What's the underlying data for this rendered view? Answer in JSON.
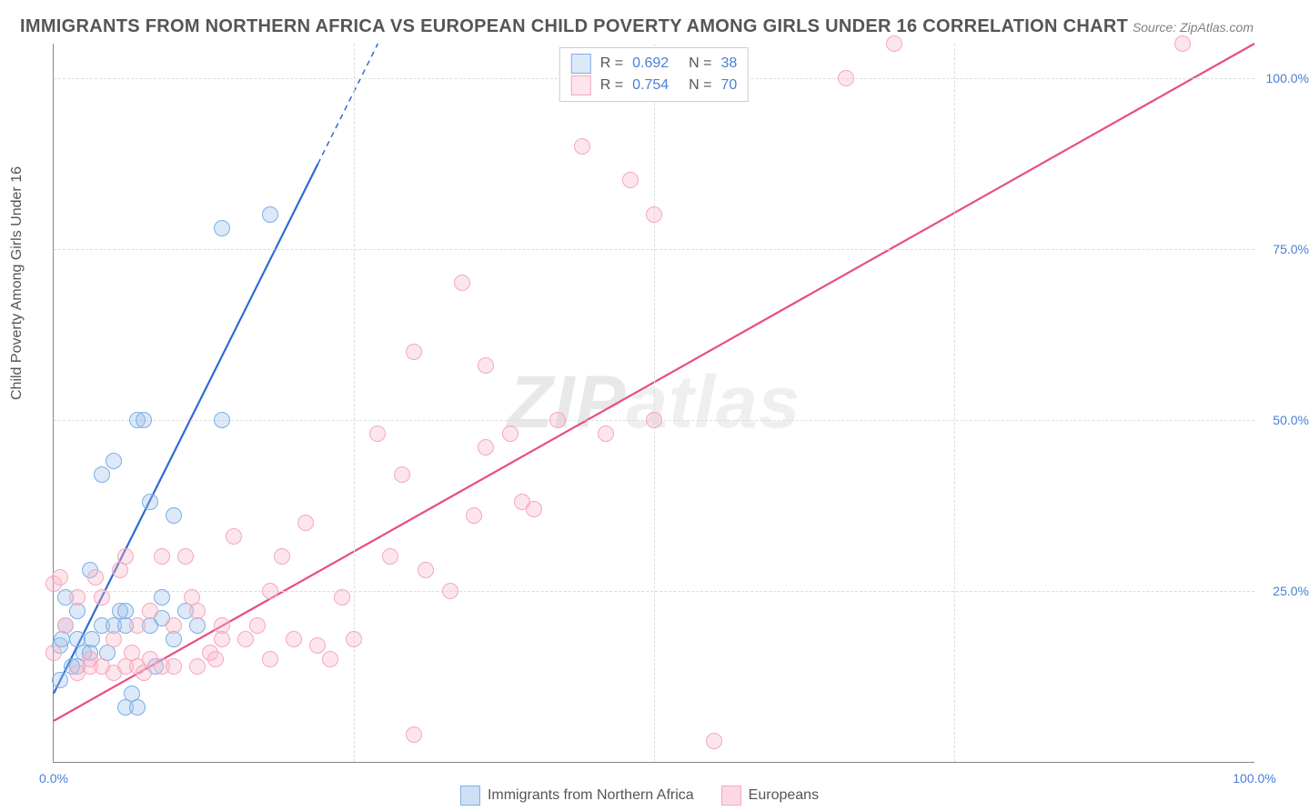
{
  "title": "IMMIGRANTS FROM NORTHERN AFRICA VS EUROPEAN CHILD POVERTY AMONG GIRLS UNDER 16 CORRELATION CHART",
  "source": "Source: ZipAtlas.com",
  "ylabel": "Child Poverty Among Girls Under 16",
  "watermark_a": "ZIP",
  "watermark_b": "atlas",
  "chart": {
    "type": "scatter",
    "xlim": [
      0,
      100
    ],
    "ylim": [
      0,
      105
    ],
    "xtick_labels": [
      "0.0%",
      "100.0%"
    ],
    "xtick_positions": [
      0,
      100
    ],
    "ytick_labels": [
      "25.0%",
      "50.0%",
      "75.0%",
      "100.0%"
    ],
    "ytick_positions": [
      25,
      50,
      75,
      100
    ],
    "grid_color": "#dddddd",
    "axis_color": "#888888",
    "background_color": "#ffffff",
    "marker_radius": 8,
    "marker_stroke_width": 1.2,
    "trend_line_width": 2.2
  },
  "series": [
    {
      "name": "Immigrants from Northern Africa",
      "fill": "rgba(155,192,236,0.35)",
      "stroke": "#7daee6",
      "line_color": "#2f6bd0",
      "R": "0.692",
      "N": "38",
      "trend": {
        "x1": 0,
        "y1": 10,
        "x2": 27,
        "y2": 105,
        "dash_from_x": 22
      },
      "points": [
        [
          0.5,
          17
        ],
        [
          0.7,
          18
        ],
        [
          1,
          20
        ],
        [
          1,
          24
        ],
        [
          2,
          14
        ],
        [
          2,
          18
        ],
        [
          2.5,
          16
        ],
        [
          3,
          16
        ],
        [
          3,
          28
        ],
        [
          4,
          20
        ],
        [
          4,
          42
        ],
        [
          5,
          20
        ],
        [
          5,
          44
        ],
        [
          5.5,
          22
        ],
        [
          6,
          8
        ],
        [
          6,
          20
        ],
        [
          6,
          22
        ],
        [
          7,
          8
        ],
        [
          7,
          50
        ],
        [
          7.5,
          50
        ],
        [
          8,
          20
        ],
        [
          8,
          38
        ],
        [
          9,
          21
        ],
        [
          9,
          24
        ],
        [
          10,
          18
        ],
        [
          10,
          36
        ],
        [
          11,
          22
        ],
        [
          12,
          20
        ],
        [
          14,
          50
        ],
        [
          18,
          80
        ],
        [
          14,
          78
        ],
        [
          0.5,
          12
        ],
        [
          1.5,
          14
        ],
        [
          2,
          22
        ],
        [
          3.2,
          18
        ],
        [
          4.5,
          16
        ],
        [
          6.5,
          10
        ],
        [
          8.5,
          14
        ]
      ]
    },
    {
      "name": "Europeans",
      "fill": "rgba(248,180,200,0.35)",
      "stroke": "#f3a8be",
      "line_color": "#e84e7f",
      "R": "0.754",
      "N": "70",
      "trend": {
        "x1": 0,
        "y1": 6,
        "x2": 100,
        "y2": 105,
        "dash_from_x": 1000
      },
      "points": [
        [
          0,
          16
        ],
        [
          0,
          26
        ],
        [
          0.5,
          27
        ],
        [
          1,
          20
        ],
        [
          2,
          24
        ],
        [
          2,
          13
        ],
        [
          3,
          14
        ],
        [
          3,
          15
        ],
        [
          4,
          24
        ],
        [
          4,
          14
        ],
        [
          5,
          13
        ],
        [
          5,
          18
        ],
        [
          6,
          14
        ],
        [
          6,
          30
        ],
        [
          7,
          14
        ],
        [
          7,
          20
        ],
        [
          8,
          15
        ],
        [
          8,
          22
        ],
        [
          9,
          14
        ],
        [
          9,
          30
        ],
        [
          10,
          14
        ],
        [
          10,
          20
        ],
        [
          11,
          30
        ],
        [
          12,
          22
        ],
        [
          12,
          14
        ],
        [
          13,
          16
        ],
        [
          14,
          20
        ],
        [
          14,
          18
        ],
        [
          15,
          33
        ],
        [
          16,
          18
        ],
        [
          17,
          20
        ],
        [
          18,
          25
        ],
        [
          18,
          15
        ],
        [
          19,
          30
        ],
        [
          20,
          18
        ],
        [
          21,
          35
        ],
        [
          22,
          17
        ],
        [
          23,
          15
        ],
        [
          24,
          24
        ],
        [
          25,
          18
        ],
        [
          27,
          48
        ],
        [
          28,
          30
        ],
        [
          29,
          42
        ],
        [
          30,
          60
        ],
        [
          30,
          4
        ],
        [
          31,
          28
        ],
        [
          34,
          70
        ],
        [
          35,
          36
        ],
        [
          36,
          46
        ],
        [
          38,
          48
        ],
        [
          39,
          38
        ],
        [
          40,
          37
        ],
        [
          42,
          50
        ],
        [
          44,
          90
        ],
        [
          46,
          48
        ],
        [
          48,
          85
        ],
        [
          50,
          50
        ],
        [
          50,
          80
        ],
        [
          55,
          3
        ],
        [
          66,
          100
        ],
        [
          70,
          105
        ],
        [
          94,
          105
        ],
        [
          3.5,
          27
        ],
        [
          5.5,
          28
        ],
        [
          6.5,
          16
        ],
        [
          7.5,
          13
        ],
        [
          11.5,
          24
        ],
        [
          13.5,
          15
        ],
        [
          33,
          25
        ],
        [
          36,
          58
        ]
      ]
    }
  ],
  "legend_top": {
    "r_label": "R =",
    "n_label": "N ="
  },
  "legend_bottom": [
    {
      "label": "Immigrants from Northern Africa",
      "fill": "rgba(155,192,236,0.5)",
      "stroke": "#7daee6"
    },
    {
      "label": "Europeans",
      "fill": "rgba(248,180,200,0.5)",
      "stroke": "#f3a8be"
    }
  ]
}
